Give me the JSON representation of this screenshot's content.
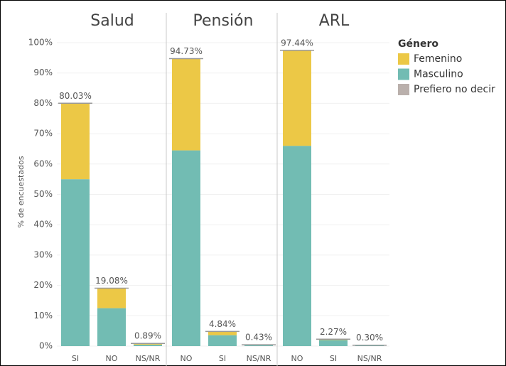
{
  "chart_data": {
    "type": "bar",
    "stacked": true,
    "y_label": "% de encuestados",
    "ylim": [
      0,
      100
    ],
    "yticks": [
      {
        "value": 0,
        "label": "0%"
      },
      {
        "value": 10,
        "label": "10%"
      },
      {
        "value": 20,
        "label": "20%"
      },
      {
        "value": 30,
        "label": "30%"
      },
      {
        "value": 40,
        "label": "40%"
      },
      {
        "value": 50,
        "label": "50%"
      },
      {
        "value": 60,
        "label": "60%"
      },
      {
        "value": 70,
        "label": "70%"
      },
      {
        "value": 80,
        "label": "80%"
      },
      {
        "value": 90,
        "label": "90%"
      },
      {
        "value": 100,
        "label": "100%"
      }
    ],
    "grid": true,
    "legend_title": "Género",
    "legend": "right",
    "series": [
      {
        "name": "Femenino",
        "color": "#ecc846"
      },
      {
        "name": "Masculino",
        "color": "#72bcb3"
      },
      {
        "name": "Prefiero no decir",
        "color": "#bab0ac"
      }
    ],
    "panels": [
      {
        "title": "Salud",
        "categories": [
          "SI",
          "NO",
          "NS/NR"
        ],
        "series": [
          {
            "values": [
              25.03,
              6.58,
              0.2
            ]
          },
          {
            "values": [
              55,
              12.5,
              0.5
            ]
          },
          {
            "values": [
              0,
              0,
              0.19
            ]
          }
        ],
        "totals": [
          80.03,
          19.08,
          0.89
        ],
        "total_labels": [
          "80.03%",
          "19.08%",
          "0.89%"
        ]
      },
      {
        "title": "Pensión",
        "categories": [
          "NO",
          "SI",
          "NS/NR"
        ],
        "series": [
          {
            "values": [
              30.23,
              1.24,
              0
            ]
          },
          {
            "values": [
              64.5,
              3.6,
              0.3
            ]
          },
          {
            "values": [
              0,
              0,
              0.13
            ]
          }
        ],
        "totals": [
          94.73,
          4.84,
          0.43
        ],
        "total_labels": [
          "94.73%",
          "4.84%",
          "0.43%"
        ]
      },
      {
        "title": "ARL",
        "categories": [
          "NO",
          "SI",
          "NS/NR"
        ],
        "series": [
          {
            "values": [
              31.44,
              0.27,
              0
            ]
          },
          {
            "values": [
              66,
              2.0,
              0.2
            ]
          },
          {
            "values": [
              0,
              0,
              0.1
            ]
          }
        ],
        "totals": [
          97.44,
          2.27,
          0.3
        ],
        "total_labels": [
          "97.44%",
          "2.27%",
          "0.30%"
        ]
      }
    ]
  }
}
